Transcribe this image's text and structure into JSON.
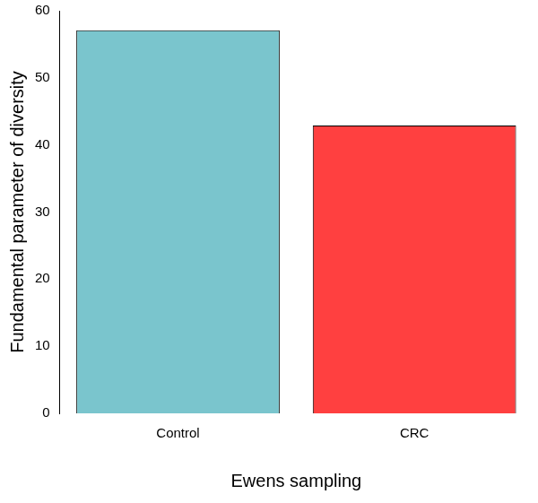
{
  "chart_data": {
    "type": "bar",
    "x_label": "Ewens sampling",
    "y_label": "Fundamental parameter of diversity",
    "categories": [
      "Control",
      "CRC"
    ],
    "values": [
      57.1,
      42.9
    ],
    "colors": [
      "#7ac5cd",
      "#ff4040"
    ],
    "ylim": [
      0,
      60
    ],
    "yticks": [
      0,
      10,
      20,
      30,
      40,
      50,
      60
    ],
    "grid": false
  }
}
